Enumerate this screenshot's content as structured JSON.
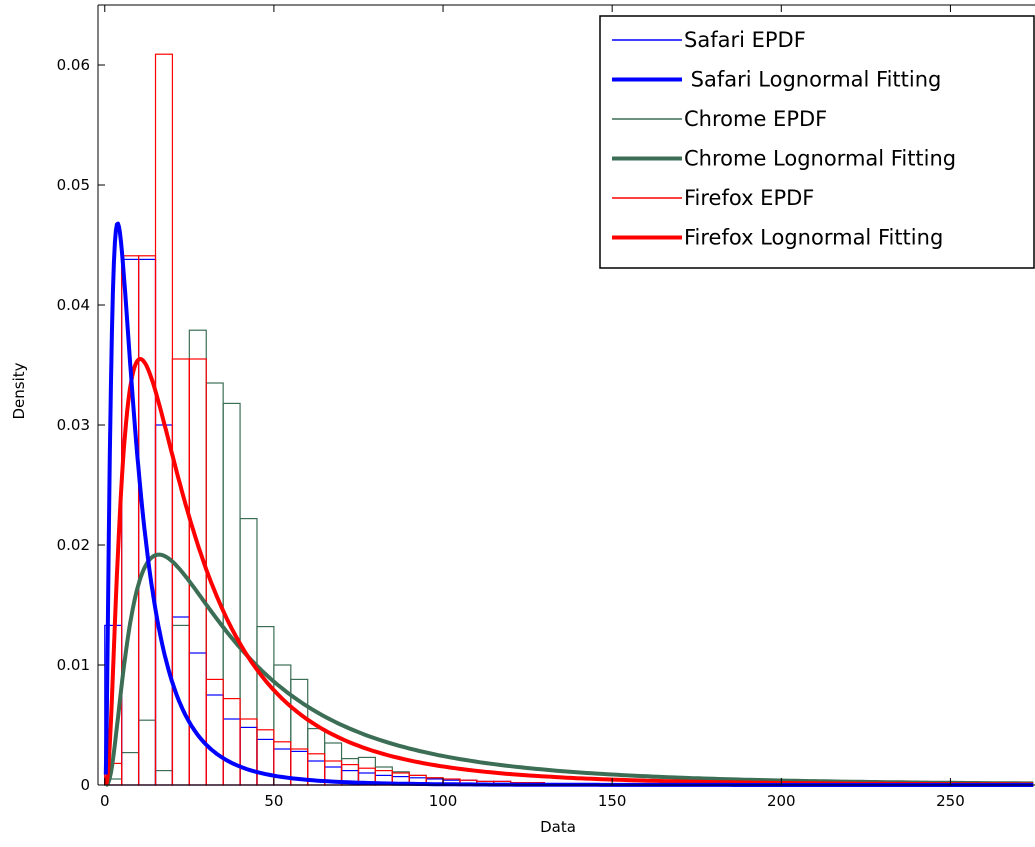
{
  "chart_data": {
    "type": "histogram-with-fitted-lines",
    "xlabel": "Data",
    "ylabel": "Density",
    "xlim": [
      -2,
      275
    ],
    "ylim": [
      0,
      0.065
    ],
    "x_ticks": [
      {
        "value": 0,
        "label": "0"
      },
      {
        "value": 50,
        "label": "50"
      },
      {
        "value": 100,
        "label": "100"
      },
      {
        "value": 150,
        "label": "150"
      },
      {
        "value": 200,
        "label": "200"
      },
      {
        "value": 250,
        "label": "250"
      }
    ],
    "y_ticks": [
      {
        "value": 0,
        "label": "0"
      },
      {
        "value": 0.01,
        "label": "0.01"
      },
      {
        "value": 0.02,
        "label": "0.02"
      },
      {
        "value": 0.03,
        "label": "0.03"
      },
      {
        "value": 0.04,
        "label": "0.04"
      },
      {
        "value": 0.05,
        "label": "0.05"
      },
      {
        "value": 0.06,
        "label": "0.06"
      }
    ],
    "grid": false,
    "legend_position": "top-right",
    "legend": [
      {
        "label": "Safari EPDF",
        "color": "#0000ff",
        "style": "thin"
      },
      {
        "label": " Safari Lognormal Fitting",
        "color": "#0000ff",
        "style": "thick"
      },
      {
        "label": "Chrome EPDF",
        "color": "#3c6e55",
        "style": "thin"
      },
      {
        "label": "Chrome Lognormal Fitting",
        "color": "#3c6e55",
        "style": "thick"
      },
      {
        "label": "Firefox EPDF",
        "color": "#ff0000",
        "style": "thin"
      },
      {
        "label": "Firefox Lognormal Fitting",
        "color": "#ff0000",
        "style": "thick"
      }
    ],
    "histograms": [
      {
        "name": "Chrome EPDF",
        "color": "#3c6e55",
        "bins": [
          {
            "x0": 0,
            "x1": 5,
            "value": 0.0005
          },
          {
            "x0": 5,
            "x1": 10,
            "value": 0.0027
          },
          {
            "x0": 10,
            "x1": 15,
            "value": 0.0054
          },
          {
            "x0": 15,
            "x1": 20,
            "value": 0.0012
          },
          {
            "x0": 20,
            "x1": 25,
            "value": 0.0133
          },
          {
            "x0": 25,
            "x1": 30,
            "value": 0.0379
          },
          {
            "x0": 30,
            "x1": 35,
            "value": 0.0335
          },
          {
            "x0": 35,
            "x1": 40,
            "value": 0.0318
          },
          {
            "x0": 40,
            "x1": 45,
            "value": 0.0222
          },
          {
            "x0": 45,
            "x1": 50,
            "value": 0.0132
          },
          {
            "x0": 50,
            "x1": 55,
            "value": 0.01
          },
          {
            "x0": 55,
            "x1": 60,
            "value": 0.0088
          },
          {
            "x0": 60,
            "x1": 65,
            "value": 0.0047
          },
          {
            "x0": 65,
            "x1": 70,
            "value": 0.0035
          },
          {
            "x0": 70,
            "x1": 75,
            "value": 0.0022
          },
          {
            "x0": 75,
            "x1": 80,
            "value": 0.0023
          },
          {
            "x0": 80,
            "x1": 85,
            "value": 0.0015
          },
          {
            "x0": 85,
            "x1": 90,
            "value": 0.0011
          },
          {
            "x0": 90,
            "x1": 95,
            "value": 0.0008
          },
          {
            "x0": 95,
            "x1": 100,
            "value": 0.0006
          }
        ]
      },
      {
        "name": "Safari EPDF",
        "color": "#0000ff",
        "bins": [
          {
            "x0": 0,
            "x1": 5,
            "value": 0.0133
          },
          {
            "x0": 5,
            "x1": 10,
            "value": 0.0438
          },
          {
            "x0": 10,
            "x1": 15,
            "value": 0.0438
          },
          {
            "x0": 15,
            "x1": 20,
            "value": 0.03
          },
          {
            "x0": 20,
            "x1": 25,
            "value": 0.014
          },
          {
            "x0": 25,
            "x1": 30,
            "value": 0.011
          },
          {
            "x0": 30,
            "x1": 35,
            "value": 0.0075
          },
          {
            "x0": 35,
            "x1": 40,
            "value": 0.0055
          },
          {
            "x0": 40,
            "x1": 45,
            "value": 0.0048
          },
          {
            "x0": 45,
            "x1": 50,
            "value": 0.0038
          },
          {
            "x0": 50,
            "x1": 55,
            "value": 0.003
          },
          {
            "x0": 55,
            "x1": 60,
            "value": 0.0028
          },
          {
            "x0": 60,
            "x1": 65,
            "value": 0.002
          },
          {
            "x0": 65,
            "x1": 70,
            "value": 0.0015
          },
          {
            "x0": 70,
            "x1": 75,
            "value": 0.0012
          },
          {
            "x0": 75,
            "x1": 80,
            "value": 0.001
          },
          {
            "x0": 80,
            "x1": 85,
            "value": 0.0008
          },
          {
            "x0": 85,
            "x1": 90,
            "value": 0.0007
          },
          {
            "x0": 90,
            "x1": 95,
            "value": 0.0006
          },
          {
            "x0": 95,
            "x1": 100,
            "value": 0.0005
          },
          {
            "x0": 100,
            "x1": 105,
            "value": 0.0004
          },
          {
            "x0": 105,
            "x1": 110,
            "value": 0.0004
          },
          {
            "x0": 110,
            "x1": 115,
            "value": 0.0003
          },
          {
            "x0": 115,
            "x1": 120,
            "value": 0.0003
          },
          {
            "x0": 120,
            "x1": 125,
            "value": 0.0002
          }
        ]
      },
      {
        "name": "Firefox EPDF",
        "color": "#ff0000",
        "bins": [
          {
            "x0": 0,
            "x1": 5,
            "value": 0.0018
          },
          {
            "x0": 5,
            "x1": 10,
            "value": 0.0441
          },
          {
            "x0": 10,
            "x1": 15,
            "value": 0.0441
          },
          {
            "x0": 15,
            "x1": 20,
            "value": 0.0609
          },
          {
            "x0": 20,
            "x1": 25,
            "value": 0.0355
          },
          {
            "x0": 25,
            "x1": 30,
            "value": 0.0355
          },
          {
            "x0": 30,
            "x1": 35,
            "value": 0.0088
          },
          {
            "x0": 35,
            "x1": 40,
            "value": 0.0072
          },
          {
            "x0": 40,
            "x1": 45,
            "value": 0.0055
          },
          {
            "x0": 45,
            "x1": 50,
            "value": 0.0046
          },
          {
            "x0": 50,
            "x1": 55,
            "value": 0.0036
          },
          {
            "x0": 55,
            "x1": 60,
            "value": 0.003
          },
          {
            "x0": 60,
            "x1": 65,
            "value": 0.0026
          },
          {
            "x0": 65,
            "x1": 70,
            "value": 0.002
          },
          {
            "x0": 70,
            "x1": 75,
            "value": 0.0017
          },
          {
            "x0": 75,
            "x1": 80,
            "value": 0.0014
          },
          {
            "x0": 80,
            "x1": 85,
            "value": 0.0012
          },
          {
            "x0": 85,
            "x1": 90,
            "value": 0.001
          },
          {
            "x0": 90,
            "x1": 95,
            "value": 0.0008
          },
          {
            "x0": 95,
            "x1": 100,
            "value": 0.0006
          },
          {
            "x0": 100,
            "x1": 105,
            "value": 0.0005
          },
          {
            "x0": 105,
            "x1": 110,
            "value": 0.0004
          },
          {
            "x0": 110,
            "x1": 115,
            "value": 0.0003
          },
          {
            "x0": 115,
            "x1": 120,
            "value": 0.0003
          },
          {
            "x0": 120,
            "x1": 125,
            "value": 0.0002
          },
          {
            "x0": 125,
            "x1": 130,
            "value": 0.0002
          },
          {
            "x0": 130,
            "x1": 135,
            "value": 0.0001
          },
          {
            "x0": 135,
            "x1": 140,
            "value": 0.0001
          }
        ]
      }
    ],
    "fits": [
      {
        "name": "Chrome Lognormal Fitting",
        "color": "#3c6e55",
        "mode_x": 16.0,
        "peak_y": 0.0192
      },
      {
        "name": "Firefox Lognormal Fitting",
        "color": "#ff0000",
        "mode_x": 10.5,
        "peak_y": 0.0355
      },
      {
        "name": "Safari Lognormal Fitting",
        "color": "#0000ff",
        "mode_x": 3.8,
        "peak_y": 0.0468
      }
    ]
  }
}
